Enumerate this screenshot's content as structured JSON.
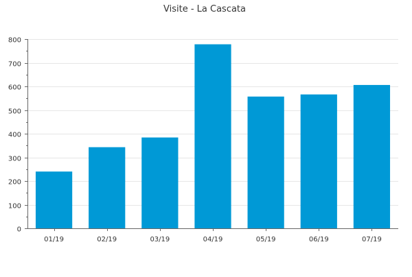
{
  "chart_data": {
    "type": "bar",
    "title": "Visite - La Cascata",
    "xlabel": "",
    "ylabel": "",
    "categories": [
      "01/19",
      "02/19",
      "03/19",
      "04/19",
      "05/19",
      "06/19",
      "07/19"
    ],
    "values": [
      240,
      343,
      384,
      778,
      557,
      566,
      606
    ],
    "ylim": [
      0,
      800
    ],
    "yticks": [
      0,
      100,
      200,
      300,
      400,
      500,
      600,
      700,
      800
    ],
    "grid": true,
    "legend": "none",
    "bar_color": "#0099d6",
    "grid_color": "#e6e6e6",
    "axis_color": "#666666",
    "text_color": "#333333"
  }
}
